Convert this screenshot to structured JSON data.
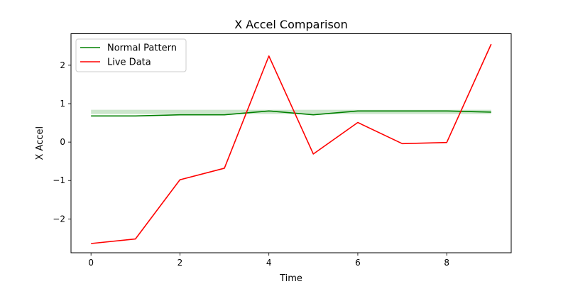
{
  "chart_data": {
    "type": "line",
    "title": "X Accel Comparison",
    "xlabel": "Time",
    "ylabel": "X Accel",
    "xlim": [
      -0.45,
      9.45
    ],
    "ylim": [
      -2.88,
      2.82
    ],
    "xticks": [
      0,
      2,
      4,
      6,
      8
    ],
    "yticks": [
      -2,
      -1,
      0,
      1,
      2
    ],
    "grid": false,
    "legend_position": "top-left",
    "x": [
      0,
      1,
      2,
      3,
      4,
      5,
      6,
      7,
      8,
      9
    ],
    "series": [
      {
        "name": "Normal Pattern",
        "color": "#008000",
        "values": [
          0.68,
          0.68,
          0.71,
          0.71,
          0.81,
          0.71,
          0.81,
          0.81,
          0.81,
          0.78
        ]
      },
      {
        "name": "Live Data",
        "color": "#ff0000",
        "values": [
          -2.64,
          -2.52,
          -0.98,
          -0.68,
          2.24,
          -0.31,
          0.51,
          -0.04,
          -0.01,
          2.55
        ]
      }
    ],
    "band": {
      "color": "#008000",
      "lower": [
        0.73,
        0.73,
        0.73,
        0.73,
        0.73,
        0.73,
        0.73,
        0.73,
        0.73,
        0.73
      ],
      "upper": [
        0.84,
        0.84,
        0.84,
        0.84,
        0.84,
        0.84,
        0.84,
        0.84,
        0.84,
        0.84
      ]
    }
  }
}
